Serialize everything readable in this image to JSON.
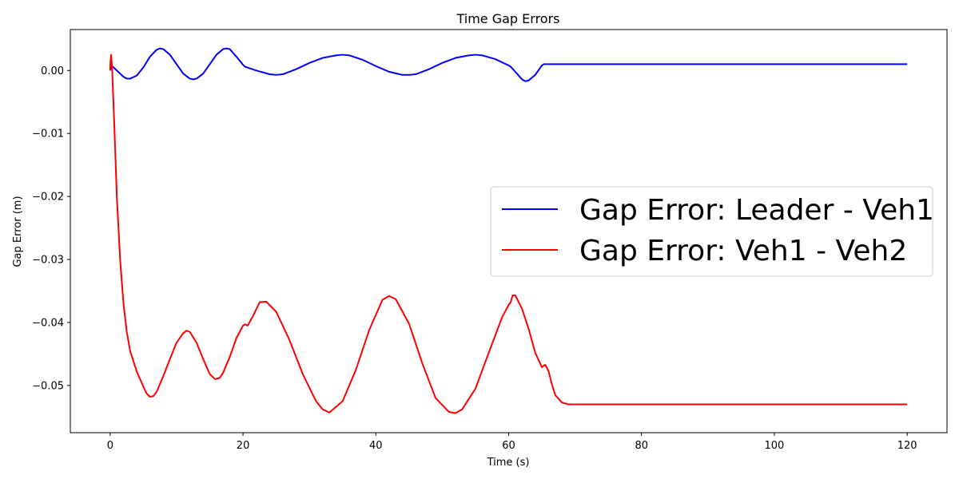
{
  "chart_data": {
    "type": "line",
    "title": "Time Gap Errors",
    "xlabel": "Time (s)",
    "ylabel": "Gap Error (m)",
    "xlim": [
      -6,
      126
    ],
    "ylim": [
      -0.0575,
      0.0065
    ],
    "xticks": [
      0,
      20,
      40,
      60,
      80,
      100,
      120
    ],
    "xtick_labels": [
      "0",
      "20",
      "40",
      "60",
      "80",
      "100",
      "120"
    ],
    "yticks": [
      0.0,
      -0.01,
      -0.02,
      -0.03,
      -0.04,
      -0.05
    ],
    "ytick_labels": [
      "0.00",
      "−0.01",
      "−0.02",
      "−0.03",
      "−0.04",
      "−0.05"
    ],
    "grid": false,
    "legend_position": "center-right",
    "series": [
      {
        "name": "Gap Error: Leader - Veh1",
        "color": "#0000ff",
        "x": [
          0,
          0.15,
          0.5,
          1.0,
          1.5,
          2.0,
          2.5,
          3.0,
          4.0,
          5.0,
          6.0,
          7.0,
          7.5,
          8.0,
          9.0,
          10.0,
          11.0,
          12.0,
          12.5,
          13.0,
          14.0,
          15.0,
          16.0,
          17.0,
          17.5,
          18.0,
          19.0,
          20.0,
          20.3,
          22.0,
          24.0,
          25.0,
          26.0,
          28.0,
          30.0,
          32.0,
          34.0,
          35.0,
          36.0,
          38.0,
          40.0,
          42.0,
          44.0,
          45.0,
          46.0,
          48.0,
          50.0,
          52.0,
          54.0,
          55.0,
          56.0,
          58.0,
          60.0,
          60.3,
          61.0,
          62.0,
          62.5,
          63.0,
          64.0,
          65.0,
          65.3,
          70.0,
          80.0,
          90.0,
          100.0,
          110.0,
          120.0
        ],
        "y": [
          0.0,
          0.0008,
          0.0005,
          0.0,
          -0.0005,
          -0.001,
          -0.0013,
          -0.0013,
          -0.0008,
          0.0005,
          0.0022,
          0.0033,
          0.0035,
          0.0034,
          0.0025,
          0.001,
          -0.0005,
          -0.0013,
          -0.0014,
          -0.0013,
          -0.0005,
          0.001,
          0.0025,
          0.0034,
          0.0035,
          0.0034,
          0.0022,
          0.0009,
          0.0006,
          0.0,
          -0.0006,
          -0.0007,
          -0.0006,
          0.0002,
          0.0012,
          0.002,
          0.0024,
          0.0025,
          0.0024,
          0.0017,
          0.0007,
          -0.0002,
          -0.0007,
          -0.0007,
          -0.0006,
          0.0002,
          0.0012,
          0.002,
          0.0024,
          0.0025,
          0.0024,
          0.0018,
          0.0008,
          0.0006,
          -0.0002,
          -0.0014,
          -0.0017,
          -0.0016,
          -0.0007,
          0.0008,
          0.001,
          0.001,
          0.001,
          0.001,
          0.001,
          0.001,
          0.001
        ]
      },
      {
        "name": "Gap Error: Veh1 - Veh2",
        "color": "#ff0000",
        "x": [
          0,
          0.05,
          0.15,
          0.3,
          0.6,
          1.0,
          1.5,
          2.0,
          2.5,
          3.0,
          4.0,
          5.0,
          5.5,
          6.0,
          6.5,
          7.0,
          8.0,
          9.0,
          10.0,
          11.0,
          11.5,
          12.0,
          13.0,
          14.0,
          15.0,
          15.8,
          16.5,
          17.0,
          18.0,
          19.0,
          20.0,
          20.3,
          20.7,
          21.5,
          22.5,
          23.5,
          25.0,
          27.0,
          29.0,
          31.0,
          32.0,
          33.0,
          35.0,
          37.0,
          39.0,
          41.0,
          42.0,
          43.0,
          45.0,
          47.0,
          49.0,
          51.0,
          52.0,
          53.0,
          55.0,
          57.0,
          59.0,
          60.0,
          60.3,
          60.6,
          61.0,
          62.0,
          63.0,
          64.0,
          65.0,
          65.5,
          66.0,
          66.5,
          67.0,
          68.0,
          69.0,
          70.0,
          80.0,
          90.0,
          100.0,
          110.0,
          120.0
        ],
        "y": [
          0.0,
          0.0015,
          0.0025,
          0.0,
          -0.008,
          -0.02,
          -0.03,
          -0.037,
          -0.0415,
          -0.0445,
          -0.0478,
          -0.0502,
          -0.0513,
          -0.0518,
          -0.0517,
          -0.051,
          -0.0485,
          -0.0458,
          -0.0432,
          -0.0417,
          -0.0413,
          -0.0415,
          -0.0432,
          -0.0458,
          -0.0482,
          -0.049,
          -0.0488,
          -0.048,
          -0.0455,
          -0.0425,
          -0.0405,
          -0.0403,
          -0.0405,
          -0.039,
          -0.0368,
          -0.0367,
          -0.0383,
          -0.0428,
          -0.0482,
          -0.0525,
          -0.0538,
          -0.0543,
          -0.0525,
          -0.0475,
          -0.0412,
          -0.0364,
          -0.0358,
          -0.0363,
          -0.0402,
          -0.0465,
          -0.052,
          -0.0542,
          -0.0544,
          -0.0538,
          -0.0505,
          -0.0448,
          -0.0392,
          -0.0372,
          -0.0368,
          -0.0357,
          -0.0357,
          -0.0378,
          -0.041,
          -0.0448,
          -0.0471,
          -0.0467,
          -0.0477,
          -0.0498,
          -0.0515,
          -0.0527,
          -0.053,
          -0.053,
          -0.053,
          -0.053,
          -0.053,
          -0.053,
          -0.053
        ]
      }
    ]
  }
}
